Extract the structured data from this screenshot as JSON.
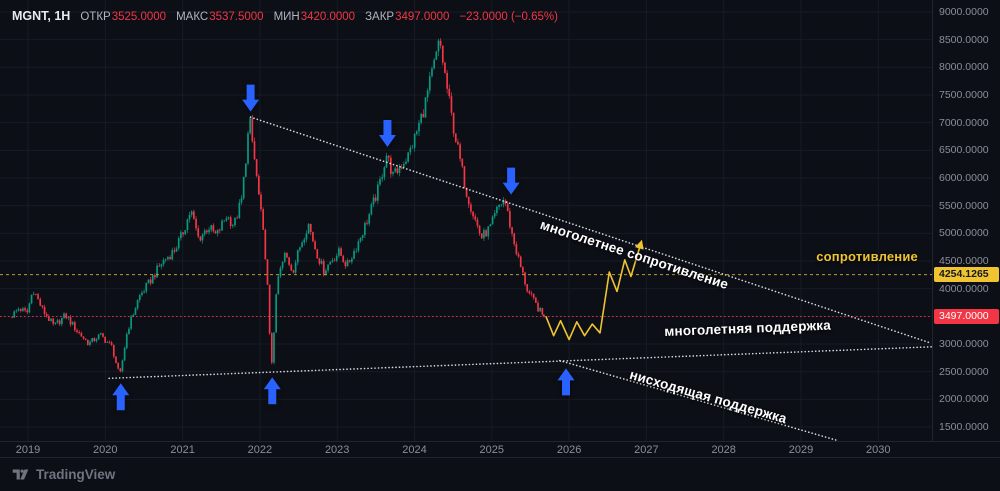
{
  "legend": {
    "symbol": "MGNT, 1H",
    "fields": [
      {
        "label": "ОТКР",
        "value": "3525.0000"
      },
      {
        "label": "МАКС",
        "value": "3537.5000"
      },
      {
        "label": "МИН",
        "value": "3420.0000"
      },
      {
        "label": "ЗАКР",
        "value": "3497.0000"
      }
    ],
    "change": "−23.0000 (−0.65%)"
  },
  "annotations": {
    "resistance_line_label": "многолетнее сопротивление",
    "support_line_label": "многолетняя поддержка",
    "descending_support_label": "нисходящая поддержка",
    "resistance_level_label": "сопротивление",
    "arrows": [
      {
        "dir": "down",
        "t": 2021.88,
        "price": 7200
      },
      {
        "dir": "down",
        "t": 2023.65,
        "price": 6560
      },
      {
        "dir": "down",
        "t": 2025.25,
        "price": 5700
      },
      {
        "dir": "up",
        "t": 2020.2,
        "price": 2290
      },
      {
        "dir": "up",
        "t": 2022.16,
        "price": 2400
      },
      {
        "dir": "up",
        "t": 2025.96,
        "price": 2560
      }
    ]
  },
  "price_axis": {
    "badges": [
      {
        "text": "4254.1265",
        "price": 4254.1265,
        "style": "yellow"
      },
      {
        "text": "3497.0000",
        "price": 3497,
        "style": "red"
      }
    ]
  },
  "footer": {
    "brand": "TradingView"
  },
  "colors": {
    "up": "#089981",
    "down": "#f23645",
    "accent_yellow": "#f0c431",
    "line_yellow": "#c9a42d",
    "blue": "#2962ff",
    "white_line": "#e9ebf0",
    "grid": "#161b25"
  },
  "chart_data": {
    "type": "candlestick",
    "symbol": "MGNT",
    "interval": "1H",
    "x_ticks": [
      "2019",
      "2020",
      "2021",
      "2022",
      "2023",
      "2024",
      "2025",
      "2026",
      "2027",
      "2028",
      "2029",
      "2030"
    ],
    "y_step": 500,
    "y_range": [
      1500,
      9000
    ],
    "y_ticks": [
      {
        "price": 9000,
        "label": "9000.0000"
      },
      {
        "price": 8500,
        "label": "8500.0000"
      },
      {
        "price": 8000,
        "label": "8000.0000"
      },
      {
        "price": 7500,
        "label": "7500.0000"
      },
      {
        "price": 7000,
        "label": "7000.0000"
      },
      {
        "price": 6500,
        "label": "6500.0000"
      },
      {
        "price": 6000,
        "label": "6000.0000"
      },
      {
        "price": 5500,
        "label": "5500.0000"
      },
      {
        "price": 5000,
        "label": "5000.0000"
      },
      {
        "price": 4500,
        "label": "4500.0000"
      },
      {
        "price": 4000,
        "label": "4000.0000"
      },
      {
        "price": 3000,
        "label": "3000.0000"
      },
      {
        "price": 2500,
        "label": "2500.0000"
      },
      {
        "price": 2000,
        "label": "2000.0000"
      },
      {
        "price": 1500,
        "label": "1500.0000"
      }
    ],
    "levels": {
      "resistance": 4254.1265,
      "last_price": 3497
    },
    "price_path": [
      [
        2018.78,
        3480
      ],
      [
        2018.9,
        3650
      ],
      [
        2019.0,
        3550
      ],
      [
        2019.08,
        4000
      ],
      [
        2019.2,
        3620
      ],
      [
        2019.35,
        3320
      ],
      [
        2019.5,
        3520
      ],
      [
        2019.65,
        3230
      ],
      [
        2019.8,
        3010
      ],
      [
        2019.95,
        3160
      ],
      [
        2020.1,
        2950
      ],
      [
        2020.2,
        2400
      ],
      [
        2020.3,
        3250
      ],
      [
        2020.45,
        3850
      ],
      [
        2020.6,
        4150
      ],
      [
        2020.75,
        4480
      ],
      [
        2020.9,
        4680
      ],
      [
        2021.0,
        4950
      ],
      [
        2021.12,
        5420
      ],
      [
        2021.22,
        4900
      ],
      [
        2021.35,
        5120
      ],
      [
        2021.45,
        4950
      ],
      [
        2021.58,
        5320
      ],
      [
        2021.68,
        5150
      ],
      [
        2021.78,
        5620
      ],
      [
        2021.88,
        7050
      ],
      [
        2021.96,
        6150
      ],
      [
        2022.04,
        5200
      ],
      [
        2022.1,
        4400
      ],
      [
        2022.16,
        2520
      ],
      [
        2022.24,
        4150
      ],
      [
        2022.34,
        4620
      ],
      [
        2022.44,
        4320
      ],
      [
        2022.54,
        4800
      ],
      [
        2022.64,
        5180
      ],
      [
        2022.74,
        4680
      ],
      [
        2022.84,
        4320
      ],
      [
        2022.94,
        4520
      ],
      [
        2023.04,
        4660
      ],
      [
        2023.14,
        4410
      ],
      [
        2023.24,
        4700
      ],
      [
        2023.34,
        5020
      ],
      [
        2023.44,
        5380
      ],
      [
        2023.55,
        5820
      ],
      [
        2023.65,
        6430
      ],
      [
        2023.74,
        6020
      ],
      [
        2023.84,
        6240
      ],
      [
        2023.94,
        6420
      ],
      [
        2024.04,
        6820
      ],
      [
        2024.14,
        7280
      ],
      [
        2024.24,
        7880
      ],
      [
        2024.34,
        8480
      ],
      [
        2024.42,
        7750
      ],
      [
        2024.5,
        7050
      ],
      [
        2024.58,
        6480
      ],
      [
        2024.68,
        5780
      ],
      [
        2024.78,
        5320
      ],
      [
        2024.88,
        4920
      ],
      [
        2025.0,
        5120
      ],
      [
        2025.1,
        5480
      ],
      [
        2025.18,
        5620
      ],
      [
        2025.28,
        4950
      ],
      [
        2025.38,
        4420
      ],
      [
        2025.48,
        3950
      ],
      [
        2025.58,
        3720
      ],
      [
        2025.68,
        3497
      ]
    ],
    "trend_lines": [
      {
        "name": "multi-year-resistance",
        "points": [
          [
            2021.88,
            7100
          ],
          [
            2030.65,
            3030
          ]
        ]
      },
      {
        "name": "multi-year-support",
        "points": [
          [
            2020.05,
            2380
          ],
          [
            2030.7,
            2950
          ]
        ]
      },
      {
        "name": "descending-support",
        "points": [
          [
            2025.88,
            2700
          ],
          [
            2029.45,
            1265
          ]
        ]
      }
    ],
    "projection": {
      "points": [
        [
          2025.7,
          3500
        ],
        [
          2025.8,
          3150
        ],
        [
          2025.89,
          3420
        ],
        [
          2026.0,
          3080
        ],
        [
          2026.1,
          3400
        ],
        [
          2026.2,
          3150
        ],
        [
          2026.3,
          3360
        ],
        [
          2026.4,
          3200
        ],
        [
          2026.52,
          4300
        ],
        [
          2026.62,
          3950
        ],
        [
          2026.72,
          4520
        ],
        [
          2026.8,
          4220
        ],
        [
          2026.92,
          4780
        ]
      ]
    }
  }
}
